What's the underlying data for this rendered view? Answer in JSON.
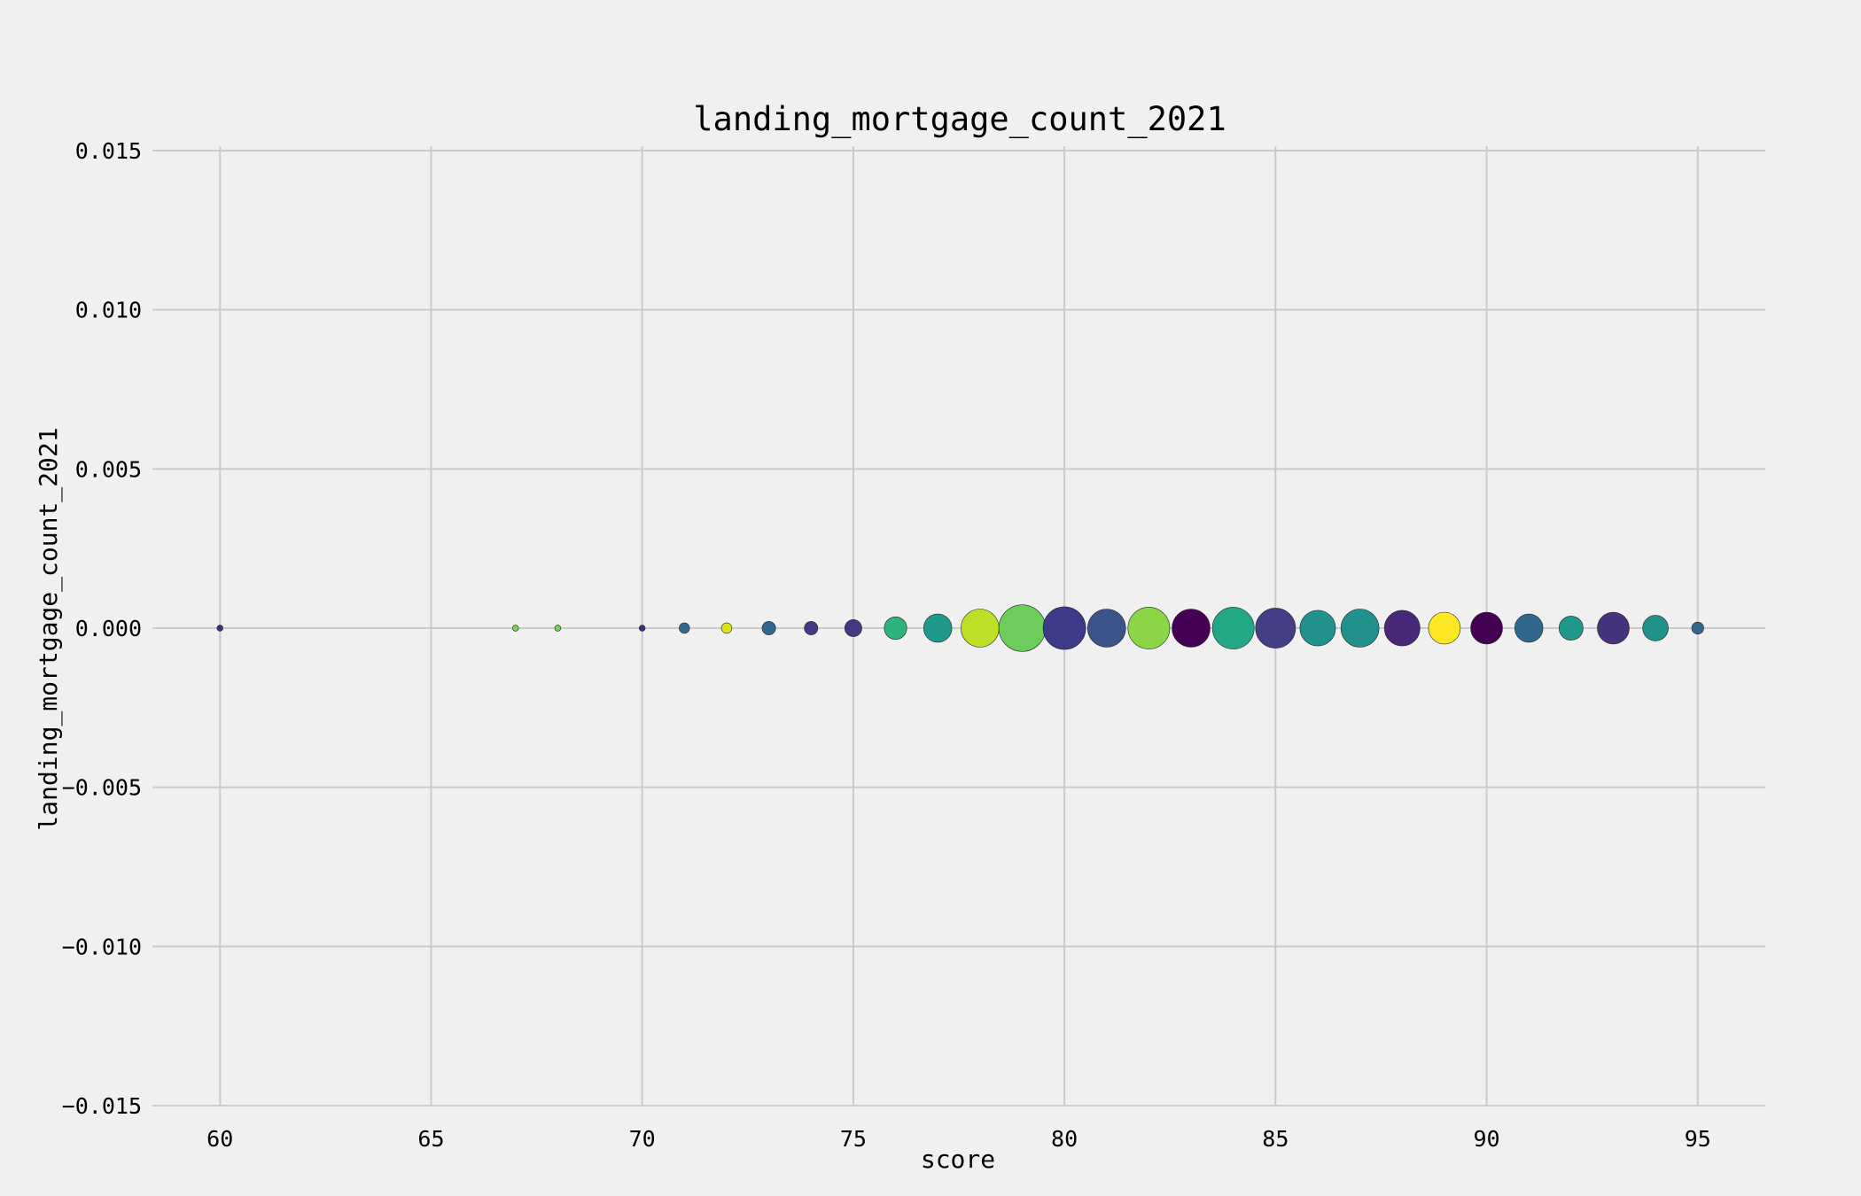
{
  "chart_data": {
    "type": "scatter",
    "title": "landing_mortgage_count_2021",
    "xlabel": "score",
    "ylabel": "landing_mortgage_count_2021",
    "xlim": [
      58.4,
      96.6
    ],
    "ylim": [
      -0.015,
      0.015
    ],
    "x_ticks": [
      60,
      65,
      70,
      75,
      80,
      85,
      90,
      95
    ],
    "x_tick_labels": [
      "60",
      "65",
      "70",
      "75",
      "80",
      "85",
      "90",
      "95"
    ],
    "y_ticks": [
      0.015,
      0.01,
      0.005,
      0.0,
      -0.005,
      -0.01,
      -0.015
    ],
    "y_tick_labels": [
      "0.015",
      "0.010",
      "0.005",
      "0.000",
      "−0.005",
      "−0.010",
      "−0.015"
    ],
    "grid": true,
    "size_encoding": "bubble size",
    "points": [
      {
        "x": 60,
        "y": 0,
        "size": 1,
        "color": "#3b2f80"
      },
      {
        "x": 67,
        "y": 0,
        "size": 1,
        "color": "#7ad151"
      },
      {
        "x": 68,
        "y": 0,
        "size": 1,
        "color": "#7ad151"
      },
      {
        "x": 70,
        "y": 0,
        "size": 1,
        "color": "#3b2f80"
      },
      {
        "x": 71,
        "y": 0,
        "size": 3,
        "color": "#31688e"
      },
      {
        "x": 72,
        "y": 0,
        "size": 3,
        "color": "#dde318"
      },
      {
        "x": 73,
        "y": 0,
        "size": 5,
        "color": "#31688e"
      },
      {
        "x": 74,
        "y": 0,
        "size": 5,
        "color": "#443983"
      },
      {
        "x": 75,
        "y": 0,
        "size": 8,
        "color": "#453781"
      },
      {
        "x": 76,
        "y": 0,
        "size": 14,
        "color": "#2db27d"
      },
      {
        "x": 77,
        "y": 0,
        "size": 22,
        "color": "#1f9a8a"
      },
      {
        "x": 78,
        "y": 0,
        "size": 40,
        "color": "#bddf26"
      },
      {
        "x": 79,
        "y": 0,
        "size": 60,
        "color": "#6ccd5a"
      },
      {
        "x": 80,
        "y": 0,
        "size": 50,
        "color": "#3e3a8a"
      },
      {
        "x": 81,
        "y": 0,
        "size": 40,
        "color": "#3b528b"
      },
      {
        "x": 82,
        "y": 0,
        "size": 48,
        "color": "#8bd646"
      },
      {
        "x": 83,
        "y": 0,
        "size": 40,
        "color": "#440154"
      },
      {
        "x": 84,
        "y": 0,
        "size": 48,
        "color": "#22a884"
      },
      {
        "x": 85,
        "y": 0,
        "size": 44,
        "color": "#433e85"
      },
      {
        "x": 86,
        "y": 0,
        "size": 35,
        "color": "#21918c"
      },
      {
        "x": 87,
        "y": 0,
        "size": 40,
        "color": "#21918c"
      },
      {
        "x": 88,
        "y": 0,
        "size": 35,
        "color": "#482878"
      },
      {
        "x": 89,
        "y": 0,
        "size": 28,
        "color": "#fde725"
      },
      {
        "x": 90,
        "y": 0,
        "size": 28,
        "color": "#440154"
      },
      {
        "x": 91,
        "y": 0,
        "size": 22,
        "color": "#30678d"
      },
      {
        "x": 92,
        "y": 0,
        "size": 16,
        "color": "#1f9a8a"
      },
      {
        "x": 93,
        "y": 0,
        "size": 28,
        "color": "#46337e"
      },
      {
        "x": 94,
        "y": 0,
        "size": 18,
        "color": "#21918c"
      },
      {
        "x": 95,
        "y": 0,
        "size": 4,
        "color": "#31688e"
      }
    ]
  }
}
